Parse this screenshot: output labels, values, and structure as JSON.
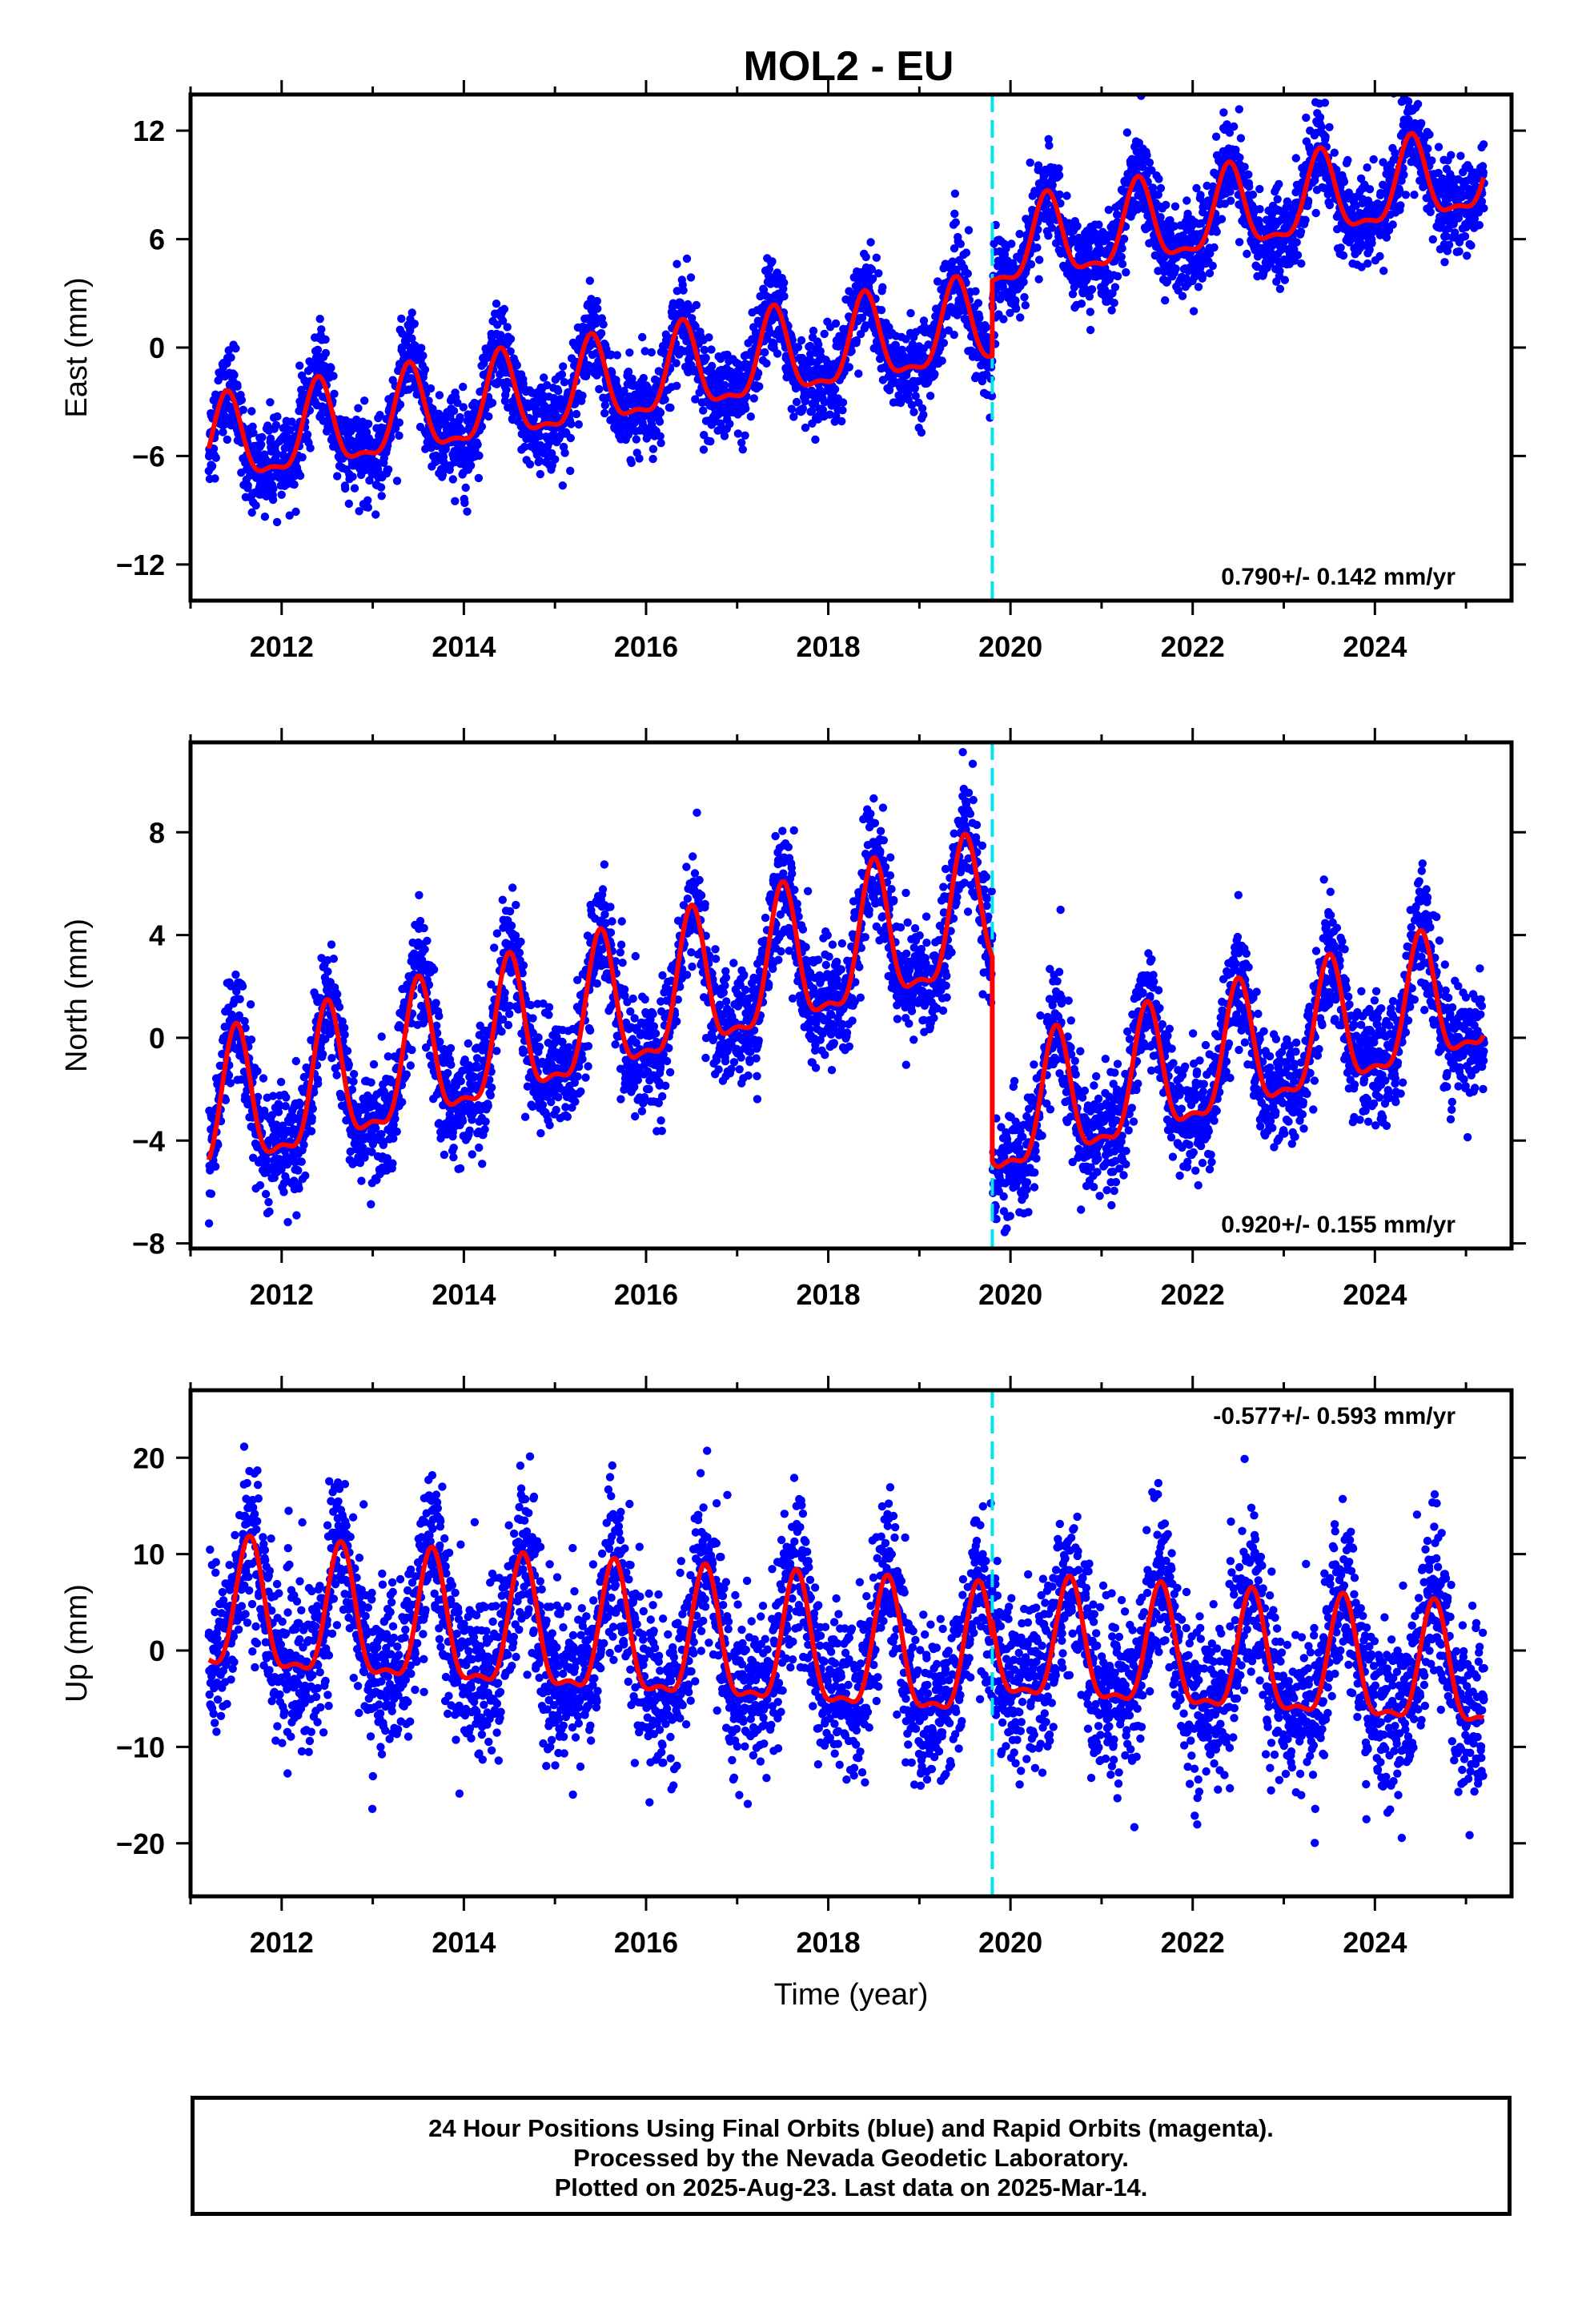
{
  "title": "MOL2 - EU",
  "footer": {
    "line1": "24 Hour Positions Using Final Orbits (blue) and Rapid Orbits (magenta).",
    "line2": "Processed by the Nevada Geodetic Laboratory.",
    "line3": "Plotted on 2025-Aug-23. Last data on 2025-Mar-14."
  },
  "colors": {
    "final_orbits": "#0000ff",
    "model": "#ff0000",
    "offset_line": "#00e5ee",
    "frame": "#000000"
  },
  "chart_data": [
    {
      "type": "scatter",
      "component": "east",
      "ylabel": "East (mm)",
      "xlabel": "",
      "xlim": [
        2011.0,
        2025.5
      ],
      "ylim": [
        -14,
        14
      ],
      "yticks": [
        -12,
        -6,
        0,
        6,
        12
      ],
      "xticks": [
        2012,
        2014,
        2016,
        2018,
        2020,
        2022,
        2024
      ],
      "rate_label": "0.790+/- 0.142 mm/yr",
      "rate_position": "bottom-right",
      "offset_epoch": 2019.8,
      "data_range": [
        2011.2,
        2025.2
      ],
      "series": [
        {
          "name": "",
          "role": "daily positions (final orbits)",
          "color": "#0000ff",
          "model": {
            "pre": {
              "slope": 0.79,
              "intercept_at_2011": -5.8,
              "amplitude": 2.3,
              "peak_phase": 0.4
            },
            "post": {
              "slope": 0.79,
              "intercept_at_2020": 5.4,
              "amplitude": 2.2,
              "peak_phase": 0.4
            }
          },
          "scatter_sd": 1.2
        },
        {
          "name": "",
          "role": "model fit",
          "color": "#ff0000"
        }
      ],
      "vertical_lines": [
        {
          "x": 2019.8,
          "style": "dashed",
          "color": "#00e5ee"
        }
      ]
    },
    {
      "type": "scatter",
      "component": "north",
      "ylabel": "North (mm)",
      "xlabel": "",
      "xlim": [
        2011.0,
        2025.5
      ],
      "ylim": [
        -8.2,
        11.5
      ],
      "yticks": [
        -8,
        -4,
        0,
        4,
        8
      ],
      "xticks": [
        2012,
        2014,
        2016,
        2018,
        2020,
        2022,
        2024
      ],
      "rate_label": "0.920+/- 0.155 mm/yr",
      "rate_position": "bottom-right",
      "offset_epoch": 2019.8,
      "data_range": [
        2011.2,
        2025.2
      ],
      "series": [
        {
          "name": "",
          "role": "daily positions (final orbits)",
          "color": "#0000ff",
          "model": {
            "pre": {
              "slope": 0.92,
              "intercept_at_2011": -3.4,
              "amplitude": 2.6,
              "peak_phase": 0.5
            },
            "post": {
              "slope": 0.92,
              "intercept_at_2020": -3.2,
              "amplitude": 2.4,
              "peak_phase": 0.5
            }
          },
          "scatter_sd": 1.1
        },
        {
          "name": "",
          "role": "model fit",
          "color": "#ff0000"
        }
      ],
      "vertical_lines": [
        {
          "x": 2019.8,
          "style": "dashed",
          "color": "#00e5ee"
        }
      ]
    },
    {
      "type": "scatter",
      "component": "up",
      "ylabel": "Up (mm)",
      "xlabel": "Time (year)",
      "xlim": [
        2011.0,
        2025.5
      ],
      "ylim": [
        -25.5,
        27
      ],
      "yticks": [
        -20,
        -10,
        0,
        10,
        20
      ],
      "xticks": [
        2012,
        2014,
        2016,
        2018,
        2020,
        2022,
        2024
      ],
      "rate_label": "-0.577+/- 0.593 mm/yr",
      "rate_position": "top-right",
      "offset_epoch": 2019.8,
      "data_range": [
        2011.2,
        2025.2
      ],
      "series": [
        {
          "name": "",
          "role": "daily positions (final orbits)",
          "color": "#0000ff",
          "model": {
            "pre": {
              "slope": -0.58,
              "intercept_at_2011": 3.5,
              "amplitude": 6.5,
              "peak_phase": 0.65
            },
            "post": {
              "slope": -0.58,
              "intercept_at_2020": 0.0,
              "amplitude": 6.0,
              "peak_phase": 0.65
            }
          },
          "scatter_sd": 4.2
        },
        {
          "name": "",
          "role": "model fit",
          "color": "#ff0000"
        }
      ],
      "vertical_lines": [
        {
          "x": 2019.8,
          "style": "dashed",
          "color": "#00e5ee"
        }
      ]
    }
  ]
}
